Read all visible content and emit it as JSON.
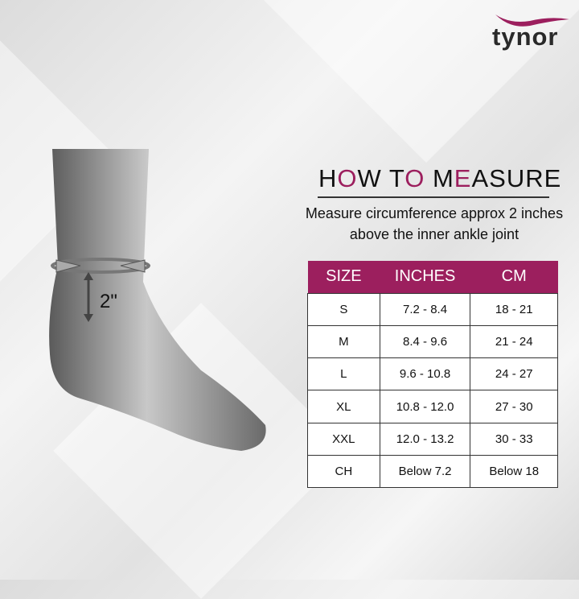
{
  "brand": {
    "name": "tynor",
    "accent": "#9c1f5e"
  },
  "illustration": {
    "measure_label": "2\""
  },
  "heading": {
    "parts": [
      "H",
      "O",
      "W T",
      "O",
      " M",
      "E",
      "ASURE"
    ]
  },
  "subtitle": "Measure circumference approx 2 inches above the inner ankle joint",
  "table": {
    "headers": [
      "SIZE",
      "INCHES",
      "CM"
    ],
    "rows": [
      [
        "S",
        "7.2 - 8.4",
        "18 - 21"
      ],
      [
        "M",
        "8.4 - 9.6",
        "21 - 24"
      ],
      [
        "L",
        "9.6 - 10.8",
        "24 - 27"
      ],
      [
        "XL",
        "10.8 - 12.0",
        "27 - 30"
      ],
      [
        "XXL",
        "12.0 - 13.2",
        "30 - 33"
      ],
      [
        "CH",
        "Below 7.2",
        "Below 18"
      ]
    ]
  }
}
